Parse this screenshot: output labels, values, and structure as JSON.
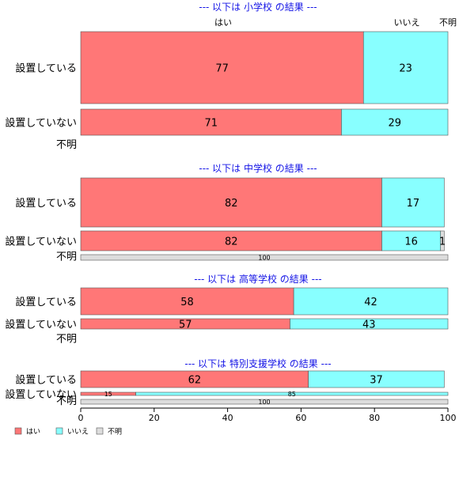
{
  "colors": {
    "はい": "#ff7777",
    "いいえ": "#88ffff",
    "不明": "#dddddd",
    "section_title": "#1414e6",
    "bar_border": "#555555"
  },
  "category_headers": [
    "はい",
    "いいえ",
    "不明"
  ],
  "chart_data": {
    "type": "bar",
    "orientation": "horizontal",
    "stacked": true,
    "percent": true,
    "xlim": [
      0,
      100
    ],
    "xticks": [
      "0",
      "20",
      "40",
      "60",
      "80",
      "100"
    ],
    "legend": {
      "position": "bottom-left",
      "entries": [
        "はい",
        "いいえ",
        "不明"
      ]
    },
    "panels": [
      {
        "title": "--- 以下は 小学校 の結果 ---",
        "rows": [
          {
            "label": "設置している",
            "values": [
              77,
              23,
              0
            ]
          },
          {
            "label": "設置していない",
            "values": [
              71,
              29,
              0
            ]
          },
          {
            "label": "不明",
            "values": []
          }
        ]
      },
      {
        "title": "--- 以下は 中学校 の結果 ---",
        "rows": [
          {
            "label": "設置している",
            "values": [
              82,
              17,
              0
            ]
          },
          {
            "label": "設置していない",
            "values": [
              82,
              16,
              1
            ]
          },
          {
            "label": "不明",
            "values": [
              0,
              0,
              100
            ]
          }
        ]
      },
      {
        "title": "--- 以下は 高等学校 の結果 ---",
        "rows": [
          {
            "label": "設置している",
            "values": [
              58,
              42,
              0
            ]
          },
          {
            "label": "設置していない",
            "values": [
              57,
              43,
              0
            ]
          },
          {
            "label": "不明",
            "values": []
          }
        ]
      },
      {
        "title": "--- 以下は 特別支援学校 の結果 ---",
        "rows": [
          {
            "label": "設置している",
            "values": [
              62,
              37,
              0
            ]
          },
          {
            "label": "設置していない",
            "values": [
              15,
              85,
              0
            ]
          },
          {
            "label": "不明",
            "values": [
              0,
              0,
              100
            ]
          }
        ]
      }
    ]
  }
}
